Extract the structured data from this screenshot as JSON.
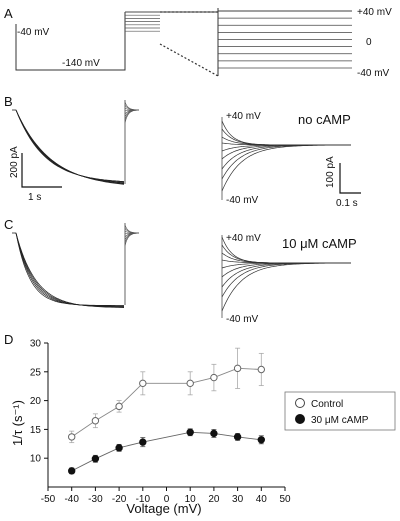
{
  "panels": {
    "A": {
      "label": "A",
      "hold_label": "-40 mV",
      "step_label": "-140 mV",
      "test_top": "+40 mV",
      "test_mid": "0",
      "test_bot": "-40 mV"
    },
    "B": {
      "label": "B",
      "condition": "no cAMP",
      "left_scale_y": "200 pA",
      "left_scale_x": "1 s",
      "right_top": "+40 mV",
      "right_bot": "-40 mV",
      "right_scale_y": "100 pA",
      "right_scale_x": "0.1 s"
    },
    "C": {
      "label": "C",
      "condition": "10 μM cAMP",
      "right_top": "+40 mV",
      "right_bot": "-40 mV"
    },
    "D": {
      "label": "D"
    }
  },
  "chart_data": {
    "type": "scatter",
    "xlabel": "Voltage (mV)",
    "ylabel": "1/τ (s⁻¹)",
    "xlim": [
      -50,
      50
    ],
    "ylim": [
      5,
      30
    ],
    "xticks": [
      -50,
      -40,
      -30,
      -20,
      -10,
      0,
      10,
      20,
      30,
      40,
      50
    ],
    "yticks": [
      10,
      15,
      20,
      25,
      30
    ],
    "legend_position": "right",
    "series": [
      {
        "name": "Control",
        "marker": "open-circle",
        "x": [
          -40,
          -30,
          -20,
          -10,
          10,
          20,
          30,
          40
        ],
        "y": [
          13.7,
          16.5,
          19.0,
          23.0,
          23.0,
          24.0,
          25.6,
          25.4
        ],
        "err": [
          1.0,
          1.2,
          1.0,
          2.0,
          2.0,
          2.3,
          3.5,
          2.8
        ]
      },
      {
        "name": "30 μM cAMP",
        "marker": "filled-circle",
        "x": [
          -40,
          -30,
          -20,
          -10,
          10,
          20,
          30,
          40
        ],
        "y": [
          7.8,
          9.9,
          11.8,
          12.8,
          14.5,
          14.3,
          13.7,
          13.2
        ],
        "err": [
          0.5,
          0.6,
          0.6,
          0.8,
          0.6,
          0.7,
          0.6,
          0.7
        ]
      }
    ]
  }
}
